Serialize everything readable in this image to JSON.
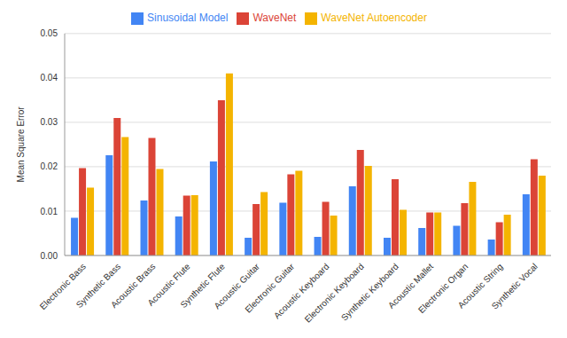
{
  "chart_data": {
    "type": "bar",
    "y_label": "Mean Square Error",
    "categories": [
      "Electronic Bass",
      "Synthetic Bass",
      "Acoustic Brass",
      "Acoustic Flute",
      "Synthetic Flute",
      "Acoustic Guitar",
      "Electronic Guitar",
      "Acoustic Keyboard",
      "Electronic Keyboard",
      "Synthetic Keyboard",
      "Acoustic Mallet",
      "Electronic Organ",
      "Acoustic String",
      "Synthetic Vocal"
    ],
    "series": [
      {
        "name": "Sinusoidal Model",
        "color": "#4285f4",
        "values": [
          0.0085,
          0.0226,
          0.0124,
          0.0088,
          0.0212,
          0.004,
          0.0119,
          0.0042,
          0.0156,
          0.004,
          0.0062,
          0.0067,
          0.0036,
          0.0138
        ]
      },
      {
        "name": "WaveNet",
        "color": "#db4437",
        "values": [
          0.0197,
          0.031,
          0.0265,
          0.0135,
          0.035,
          0.0116,
          0.0183,
          0.0121,
          0.0238,
          0.0172,
          0.0097,
          0.0118,
          0.0075,
          0.0217
        ]
      },
      {
        "name": "WaveNet Autoencoder",
        "color": "#f4b400",
        "values": [
          0.0153,
          0.0267,
          0.0195,
          0.0136,
          0.041,
          0.0143,
          0.0191,
          0.009,
          0.0202,
          0.0103,
          0.0097,
          0.0166,
          0.0092,
          0.018
        ]
      }
    ],
    "ylim": [
      0,
      0.05
    ],
    "yticks": [
      {
        "value": 0,
        "label": "0.00"
      },
      {
        "value": 0.01,
        "label": "0.01"
      },
      {
        "value": 0.02,
        "label": "0.02"
      },
      {
        "value": 0.03,
        "label": "0.03"
      },
      {
        "value": 0.04,
        "label": "0.04"
      },
      {
        "value": 0.05,
        "label": "0.05"
      }
    ],
    "grid": true,
    "legend": "top"
  }
}
